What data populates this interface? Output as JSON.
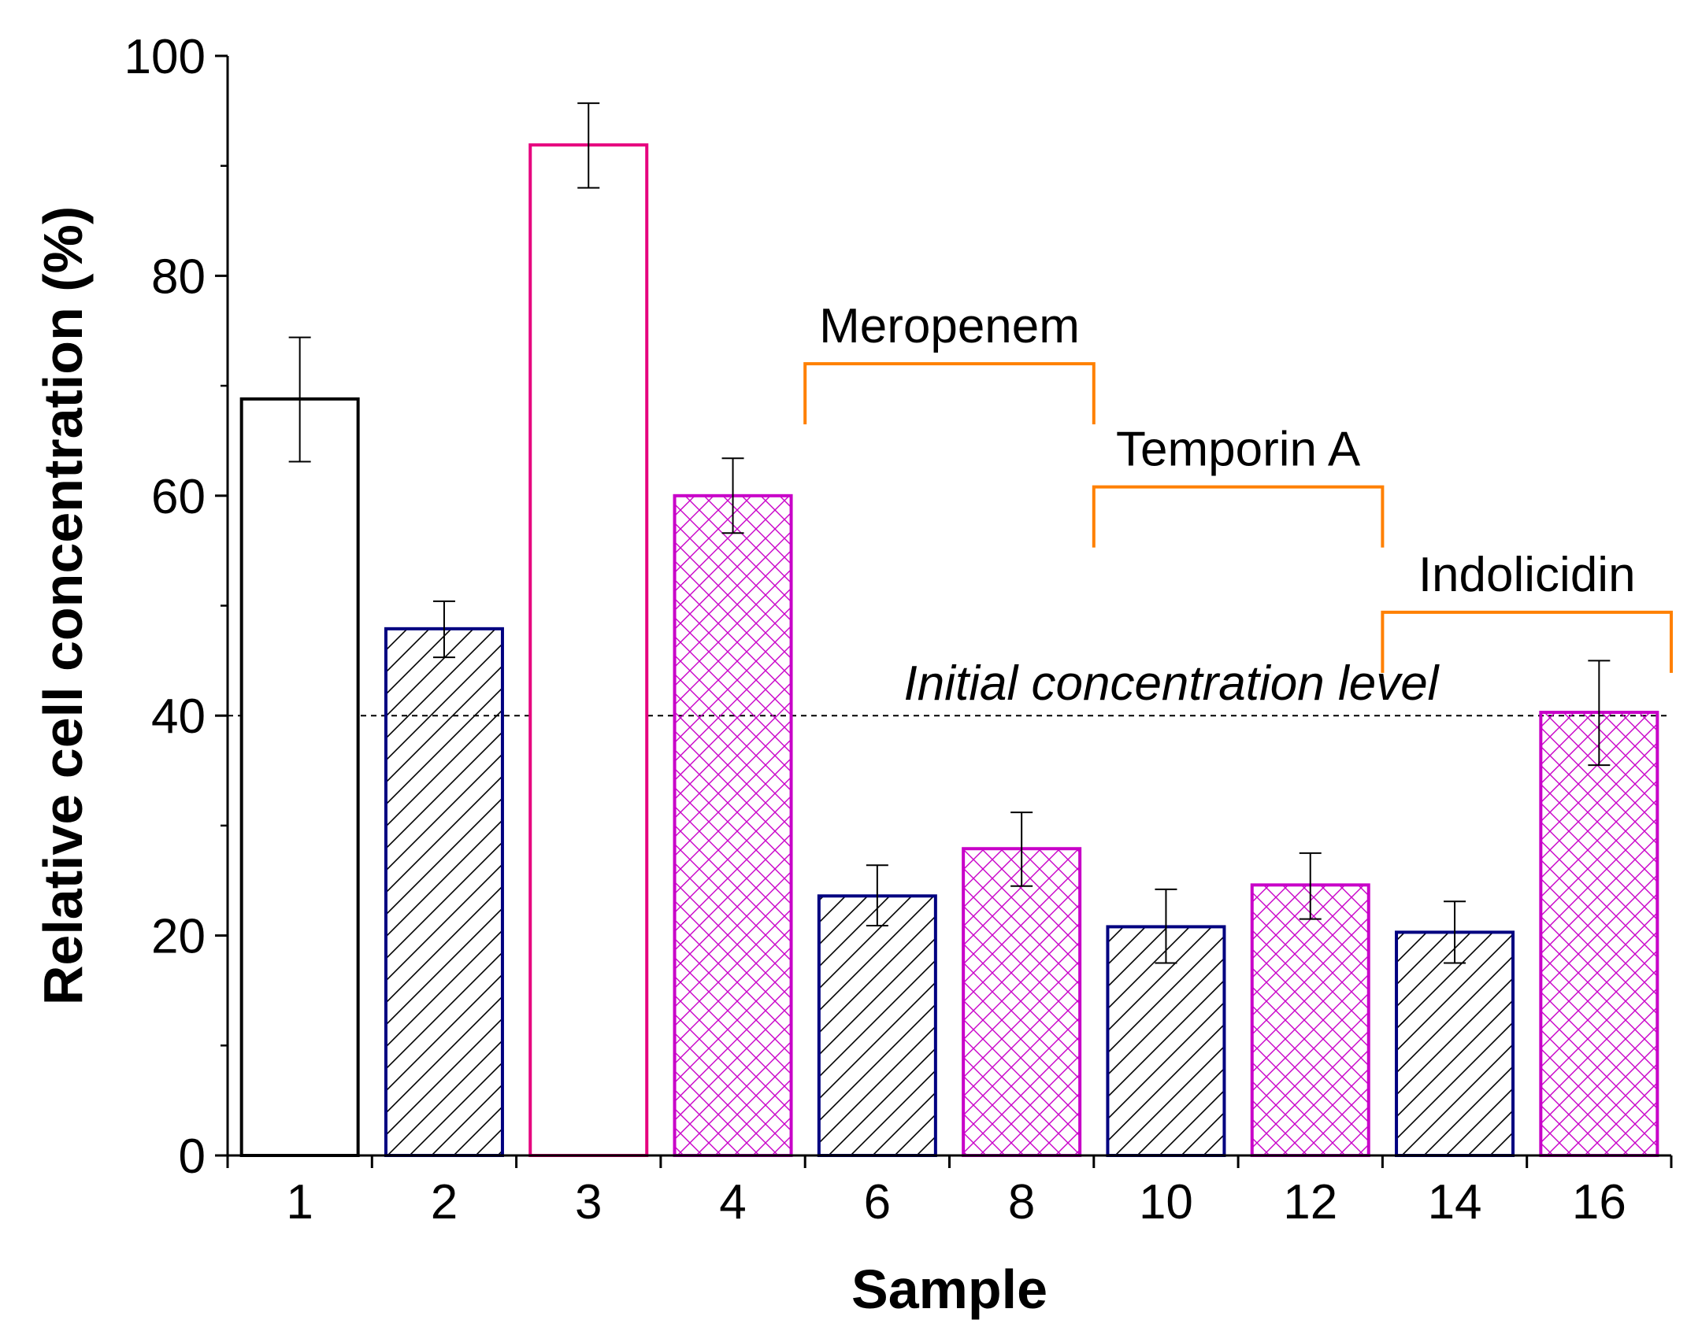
{
  "chart_data": {
    "type": "bar",
    "title": "",
    "xlabel": "Sample",
    "ylabel": "Relative cell concentration (%)",
    "ylim": [
      0,
      100
    ],
    "y_major_ticks": [
      0,
      20,
      40,
      60,
      80,
      100
    ],
    "y_minor_ticks": [
      10,
      30,
      50,
      70,
      90
    ],
    "categories": [
      "1",
      "2",
      "3",
      "4",
      "6",
      "8",
      "10",
      "12",
      "14",
      "16"
    ],
    "values": [
      68.8,
      47.9,
      91.9,
      60.0,
      23.6,
      27.9,
      20.8,
      24.6,
      20.3,
      40.3
    ],
    "error_low": [
      63.1,
      45.3,
      88.0,
      56.6,
      20.9,
      24.5,
      17.5,
      21.5,
      17.5,
      35.5
    ],
    "error_high": [
      74.4,
      50.4,
      95.7,
      63.4,
      26.4,
      31.2,
      24.2,
      27.5,
      23.1,
      45.0
    ],
    "bar_styles": [
      {
        "fill": "none",
        "stroke": "#000000"
      },
      {
        "fill": "hatch",
        "stroke": "#000080"
      },
      {
        "fill": "none",
        "stroke": "#e6007e"
      },
      {
        "fill": "cross",
        "stroke": "#c800c8"
      },
      {
        "fill": "hatch",
        "stroke": "#000080"
      },
      {
        "fill": "cross",
        "stroke": "#c800c8"
      },
      {
        "fill": "hatch",
        "stroke": "#000080"
      },
      {
        "fill": "cross",
        "stroke": "#c800c8"
      },
      {
        "fill": "hatch",
        "stroke": "#000080"
      },
      {
        "fill": "cross",
        "stroke": "#c800c8"
      }
    ],
    "reference_line": {
      "y": 40,
      "label": "Initial concentration level"
    },
    "groups": [
      {
        "label": "Meropenem",
        "start_index": 4,
        "end_index": 5,
        "level": 72
      },
      {
        "label": "Temporin A",
        "start_index": 6,
        "end_index": 7,
        "level": 60.8
      },
      {
        "label": "Indolicidin",
        "start_index": 8,
        "end_index": 9,
        "level": 49.4
      }
    ],
    "colors": {
      "axis": "#000000",
      "bracket": "#ff8000",
      "hatch_stroke": "#000000",
      "cross_stroke": "#c800c8"
    }
  }
}
